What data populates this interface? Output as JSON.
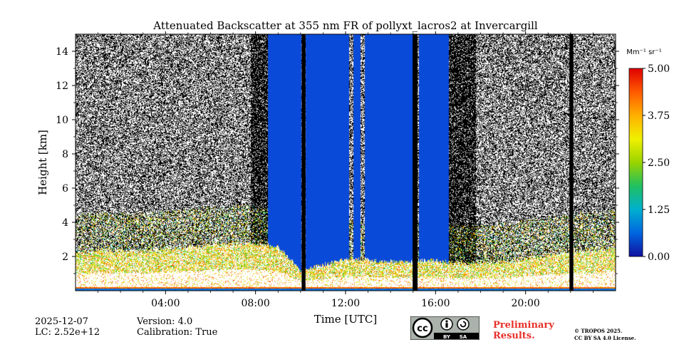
{
  "chart_data": {
    "type": "heatmap",
    "title": "Attenuated Backscatter at 355 nm FR of pollyxt_lacros2 at Invercargill",
    "xlabel": "Time [UTC]",
    "ylabel": "Height [km]",
    "xlim_hours": [
      0,
      24
    ],
    "ylim_km": [
      0,
      15
    ],
    "x_ticks": [
      {
        "hour": 4,
        "label": "04:00"
      },
      {
        "hour": 8,
        "label": "08:00"
      },
      {
        "hour": 12,
        "label": "12:00"
      },
      {
        "hour": 16,
        "label": "16:00"
      },
      {
        "hour": 20,
        "label": "20:00"
      }
    ],
    "y_ticks": [
      {
        "km": 2,
        "label": "2"
      },
      {
        "km": 4,
        "label": "4"
      },
      {
        "km": 6,
        "label": "6"
      },
      {
        "km": 8,
        "label": "8"
      },
      {
        "km": 10,
        "label": "10"
      },
      {
        "km": 12,
        "label": "12"
      },
      {
        "km": 14,
        "label": "14"
      }
    ],
    "colorbar": {
      "unit_label": "Mm⁻¹ sr⁻¹",
      "vmin": 0,
      "vmax": 5,
      "ticks": [
        {
          "value": 0,
          "label": "0.00"
        },
        {
          "value": 1.25,
          "label": "1.25"
        },
        {
          "value": 2.5,
          "label": "2.50"
        },
        {
          "value": 3.75,
          "label": "3.75"
        },
        {
          "value": 5,
          "label": "5.00"
        }
      ],
      "colors": [
        "#1010a0",
        "#0066e0",
        "#00b0d0",
        "#20c060",
        "#9ad400",
        "#f0f000",
        "#ffb000",
        "#ff5a00",
        "#e00000"
      ]
    },
    "no_signal_color": "#0a4ad8",
    "data_gap_color": "#000000",
    "noise_start_height_km": 2.0,
    "low_cloud_top_km": [
      [
        0.2,
        2.2
      ],
      [
        1.2,
        2.4
      ],
      [
        3.0,
        2.3
      ],
      [
        5.5,
        2.6
      ],
      [
        7.5,
        2.8
      ],
      [
        9.0,
        2.6
      ],
      [
        10.0,
        1.2
      ],
      [
        12.2,
        1.9
      ],
      [
        14.0,
        1.7
      ],
      [
        15.8,
        1.8
      ],
      [
        17.0,
        1.6
      ],
      [
        19.0,
        1.7
      ],
      [
        20.5,
        2.0
      ],
      [
        22.5,
        2.3
      ],
      [
        23.9,
        2.5
      ]
    ],
    "no_signal_blocks_hours": [
      [
        8.55,
        10.05
      ],
      [
        10.22,
        12.15
      ],
      [
        12.35,
        12.65
      ],
      [
        12.85,
        15.0
      ],
      [
        15.25,
        16.6
      ]
    ],
    "data_gap_lines_hours": [
      [
        10.05,
        10.22
      ],
      [
        14.98,
        15.2
      ],
      [
        21.95,
        22.12
      ]
    ]
  },
  "footer": {
    "date": "2025-12-07",
    "lc": "LC: 2.52e+12",
    "version": "Version: 4.0",
    "calibration": "Calibration: True",
    "preliminary_line1": "Preliminary",
    "preliminary_line2": "Results.",
    "copyright_line1": "© TROPOS 2025.",
    "copyright_line2": "CC BY SA 4.0 License.",
    "badge_by": "BY",
    "badge_sa": "SA"
  }
}
